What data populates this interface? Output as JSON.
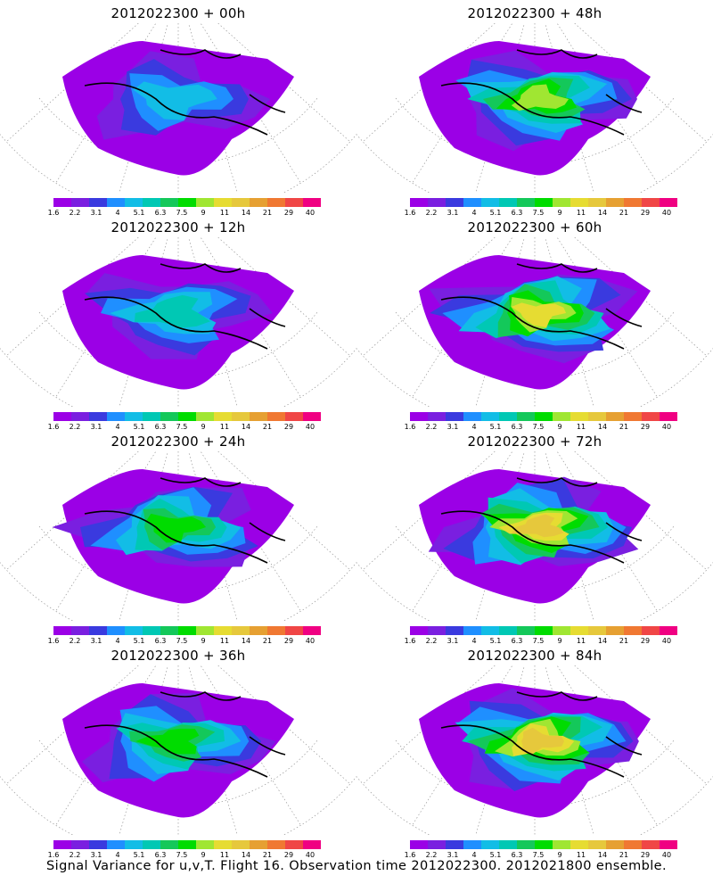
{
  "panels": [
    {
      "title": "2012022300  + 00h",
      "intensity": 0.35
    },
    {
      "title": "2012022300  + 48h",
      "intensity": 0.7
    },
    {
      "title": "2012022300  + 12h",
      "intensity": 0.45
    },
    {
      "title": "2012022300  + 60h",
      "intensity": 0.75
    },
    {
      "title": "2012022300  + 24h",
      "intensity": 0.55
    },
    {
      "title": "2012022300  + 72h",
      "intensity": 0.8
    },
    {
      "title": "2012022300  + 36h",
      "intensity": 0.6
    },
    {
      "title": "2012022300  + 84h",
      "intensity": 0.82
    }
  ],
  "colorbar": {
    "colors": [
      "#9b00e6",
      "#7a1fe0",
      "#3a3adf",
      "#1f8fff",
      "#12bde6",
      "#00c8b4",
      "#14c85a",
      "#00dc00",
      "#a0e632",
      "#e6dc32",
      "#e6c83c",
      "#e6a032",
      "#f07832",
      "#f04646",
      "#f00082"
    ],
    "ticks": [
      "1.6",
      "2.2",
      "3.1",
      "4",
      "5.1",
      "6.3",
      "7.5",
      "9",
      "11",
      "14",
      "21",
      "29",
      "40"
    ]
  },
  "footer": "Signal Variance for u,v,T. Flight 16. Observation time 2012022300. 2012021800 ensemble."
}
